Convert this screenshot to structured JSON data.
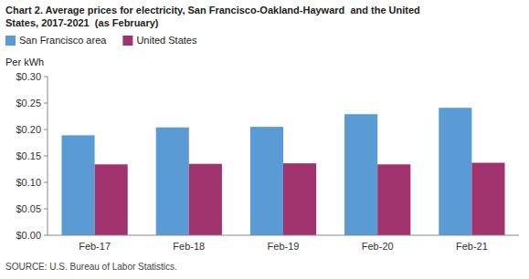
{
  "chart_data": {
    "type": "bar",
    "title": "Chart 2. Average prices for electricity, San Francisco-Oakland-Hayward  and the United\nStates, 2017-2021  (as February)",
    "y_label": "Per kWh",
    "annotations": [
      "SOURCE: U.S. Bureau of Labor Statistics."
    ],
    "categories": [
      "Feb-17",
      "Feb-18",
      "Feb-19",
      "Feb-20",
      "Feb-21"
    ],
    "series": [
      {
        "name": "San Francisco area",
        "color": "#5B9BD5",
        "values": [
          0.189,
          0.204,
          0.205,
          0.229,
          0.241
        ]
      },
      {
        "name": "United States",
        "color": "#A0336E",
        "values": [
          0.134,
          0.135,
          0.136,
          0.134,
          0.137
        ]
      }
    ],
    "ylim": [
      0,
      0.3
    ],
    "yticks": [
      {
        "value": 0.0,
        "label": "$0.00"
      },
      {
        "value": 0.05,
        "label": "$0.05"
      },
      {
        "value": 0.1,
        "label": "$0.10"
      },
      {
        "value": 0.15,
        "label": "$0.15"
      },
      {
        "value": 0.2,
        "label": "$0.20"
      },
      {
        "value": 0.25,
        "label": "$0.25"
      },
      {
        "value": 0.3,
        "label": "$0.30"
      }
    ],
    "legend": "top"
  }
}
